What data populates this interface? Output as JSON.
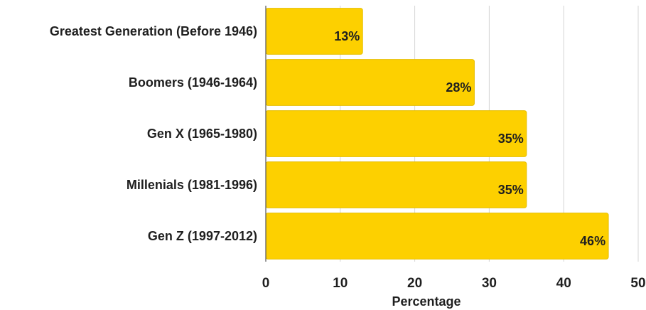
{
  "chart_data": {
    "type": "bar",
    "orientation": "horizontal",
    "categories": [
      "Greatest Generation (Before 1946)",
      "Boomers (1946-1964)",
      "Gen X (1965-1980)",
      "Millenials (1981-1996)",
      "Gen Z (1997-2012)"
    ],
    "values": [
      13,
      28,
      35,
      35,
      46
    ],
    "data_labels": [
      "13%",
      "28%",
      "35%",
      "35%",
      "46%"
    ],
    "xlabel": "Percentage",
    "xlim": [
      0,
      50
    ],
    "xticks": [
      0,
      10,
      20,
      30,
      40,
      50
    ],
    "grid": true,
    "colors": {
      "bar": "#FDD000",
      "bar_border": "#E6BE00",
      "grid": "#d4d4d4",
      "axis": "#555555",
      "text": "#1f1f1f"
    }
  }
}
